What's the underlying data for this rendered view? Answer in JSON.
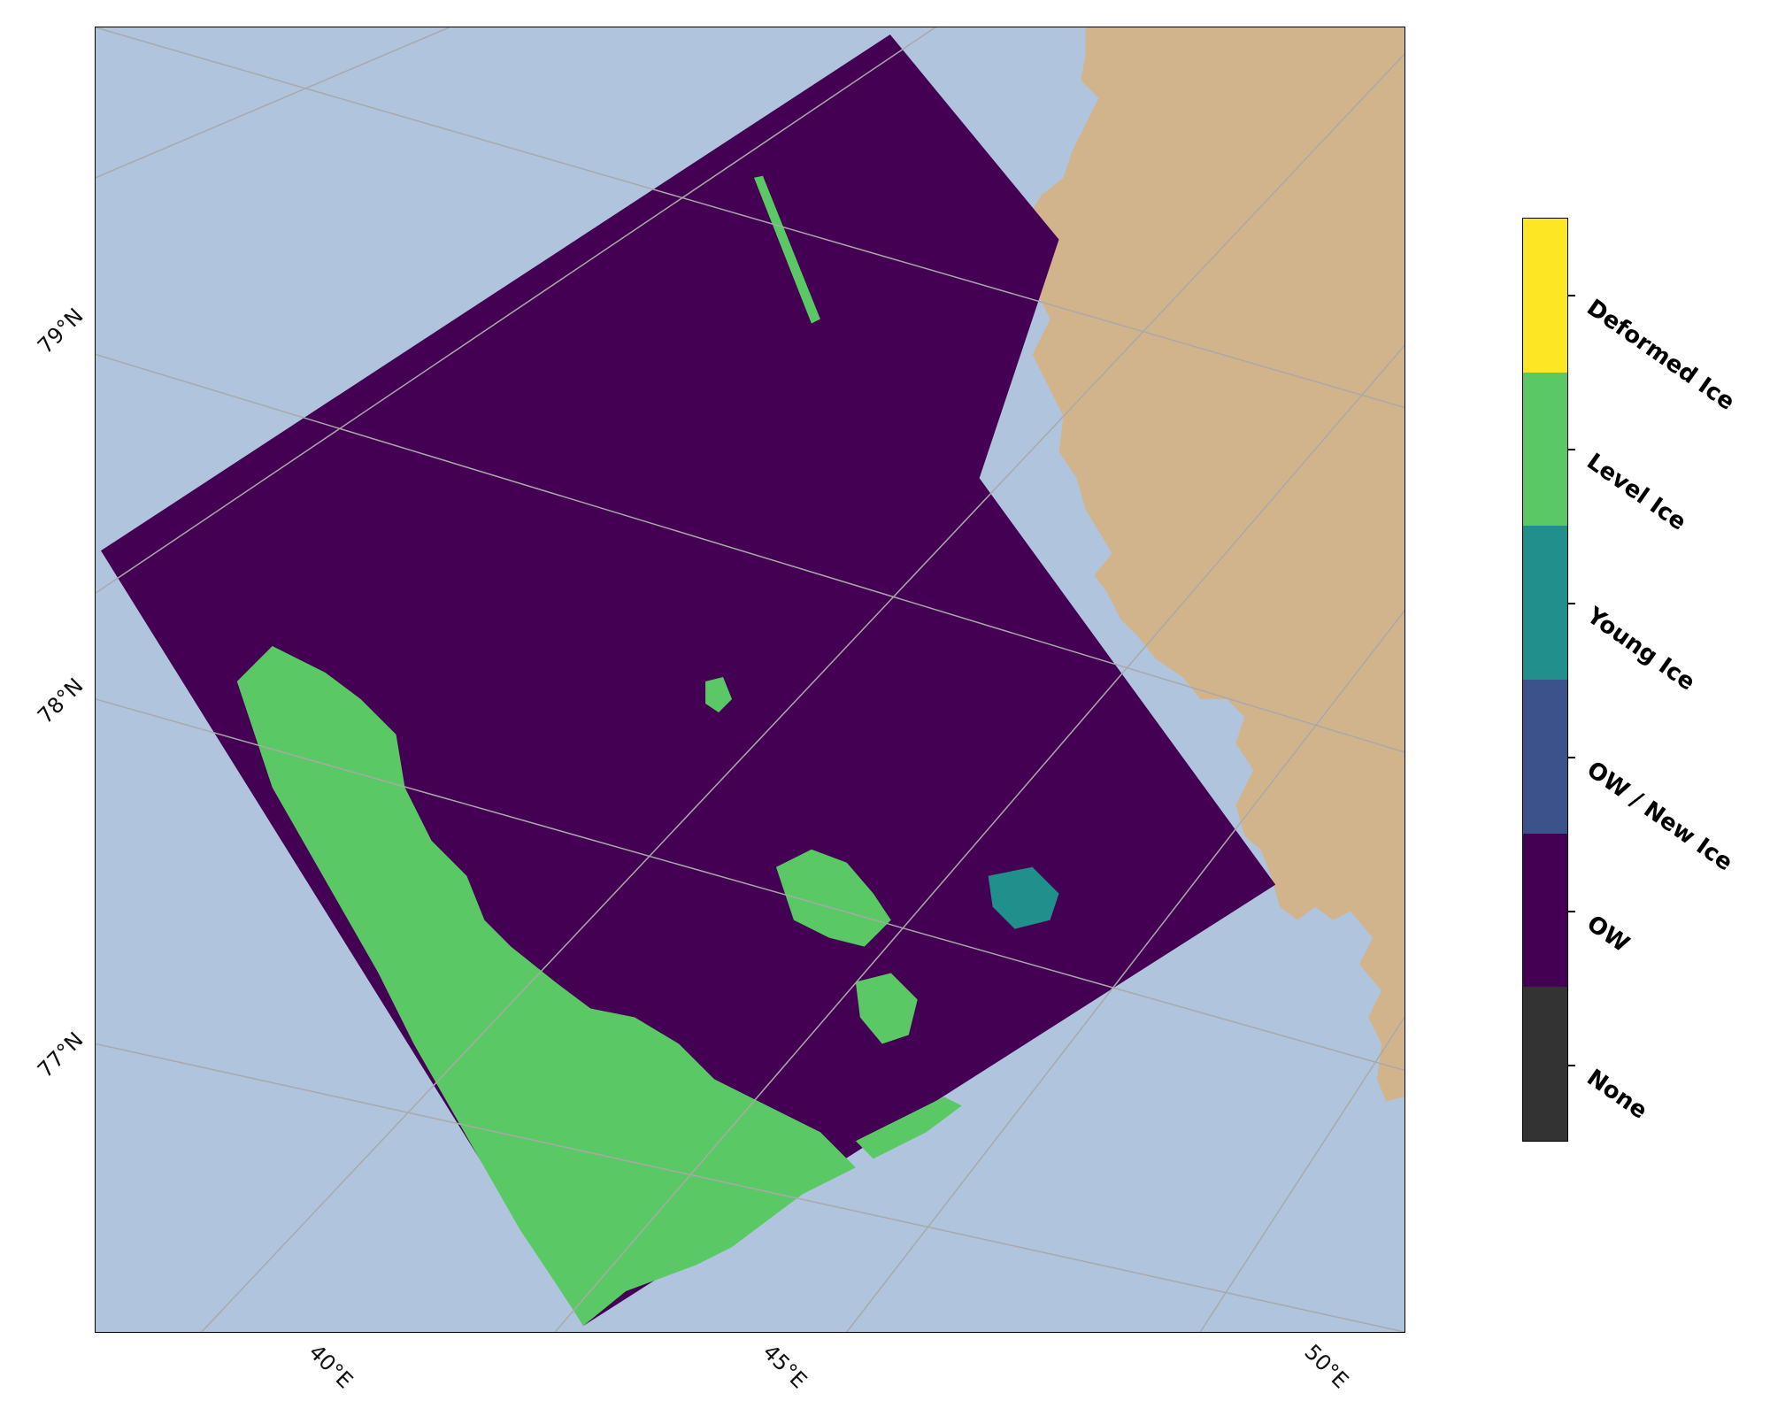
{
  "map": {
    "colors": {
      "ocean": "#b0c4de",
      "land": "#d2b48c",
      "graticule": "#a9a9a9",
      "ow": "#440154",
      "level_ice": "#5ac864",
      "young_ice": "#21908d"
    },
    "lat_labels": [
      "79°N",
      "78°N",
      "77°N"
    ],
    "lon_labels": [
      "40°E",
      "45°E",
      "50°E"
    ]
  },
  "colorbar": {
    "classes": [
      {
        "label": "None",
        "color": "#333333"
      },
      {
        "label": "OW",
        "color": "#440154"
      },
      {
        "label": "OW / New Ice",
        "color": "#3b528b"
      },
      {
        "label": "Young Ice",
        "color": "#21908d"
      },
      {
        "label": "Level Ice",
        "color": "#5ac864"
      },
      {
        "label": "Deformed Ice",
        "color": "#fde725"
      }
    ]
  }
}
